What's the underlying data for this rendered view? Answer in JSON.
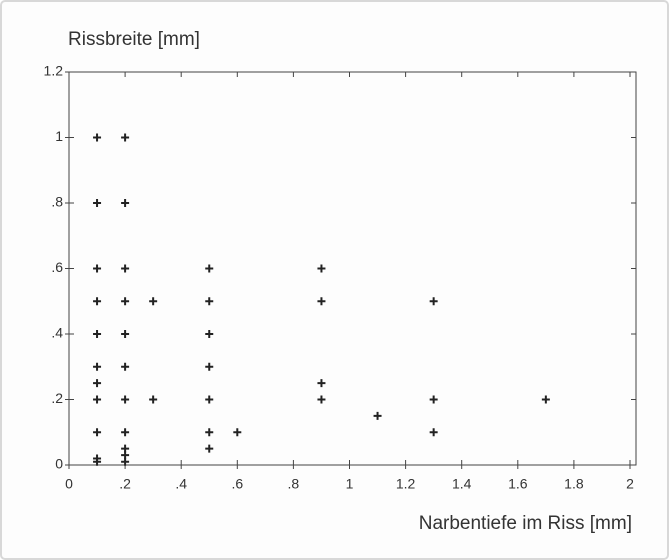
{
  "chart_data": {
    "type": "scatter",
    "ylabel": "Rissbreite  [mm]",
    "xlabel": "Narbentiefe im Riss  [mm]",
    "color": "#222222",
    "x": [
      0.1,
      0.1,
      0.1,
      0.1,
      0.1,
      0.1,
      0.1,
      0.1,
      0.1,
      0.1,
      0.1,
      0.2,
      0.2,
      0.2,
      0.2,
      0.2,
      0.2,
      0.2,
      0.2,
      0.2,
      0.2,
      0.2,
      0.3,
      0.3,
      0.5,
      0.5,
      0.5,
      0.5,
      0.5,
      0.5,
      0.5,
      0.6,
      0.9,
      0.9,
      0.9,
      0.9,
      1.1,
      1.3,
      1.3,
      1.3,
      1.7
    ],
    "values": [
      1,
      0.8,
      0.6,
      0.5,
      0.4,
      0.3,
      0.25,
      0.2,
      0.1,
      0.02,
      0.01,
      1,
      0.8,
      0.6,
      0.5,
      0.4,
      0.3,
      0.2,
      0.1,
      0.05,
      0.03,
      0.01,
      0.5,
      0.2,
      0.6,
      0.5,
      0.4,
      0.3,
      0.2,
      0.1,
      0.05,
      0.1,
      0.6,
      0.5,
      0.25,
      0.2,
      0.15,
      0.5,
      0.2,
      0.1,
      0.2
    ],
    "xlim": [
      0,
      2
    ],
    "ylim": [
      0,
      1.2
    ],
    "xticks": [
      0,
      {
        "value": 0.2,
        "label": ".2"
      },
      {
        "value": 0.4,
        "label": ".4"
      },
      {
        "value": 0.6,
        "label": ".6"
      },
      {
        "value": 0.8,
        "label": ".8"
      },
      1,
      1.2,
      1.4,
      1.6,
      1.8,
      2
    ],
    "yticks": [
      0,
      {
        "value": 0.2,
        "label": ".2"
      },
      {
        "value": 0.4,
        "label": ".4"
      },
      {
        "value": 0.6,
        "label": ".6"
      },
      {
        "value": 0.8,
        "label": ".8"
      },
      1,
      1.2
    ]
  }
}
